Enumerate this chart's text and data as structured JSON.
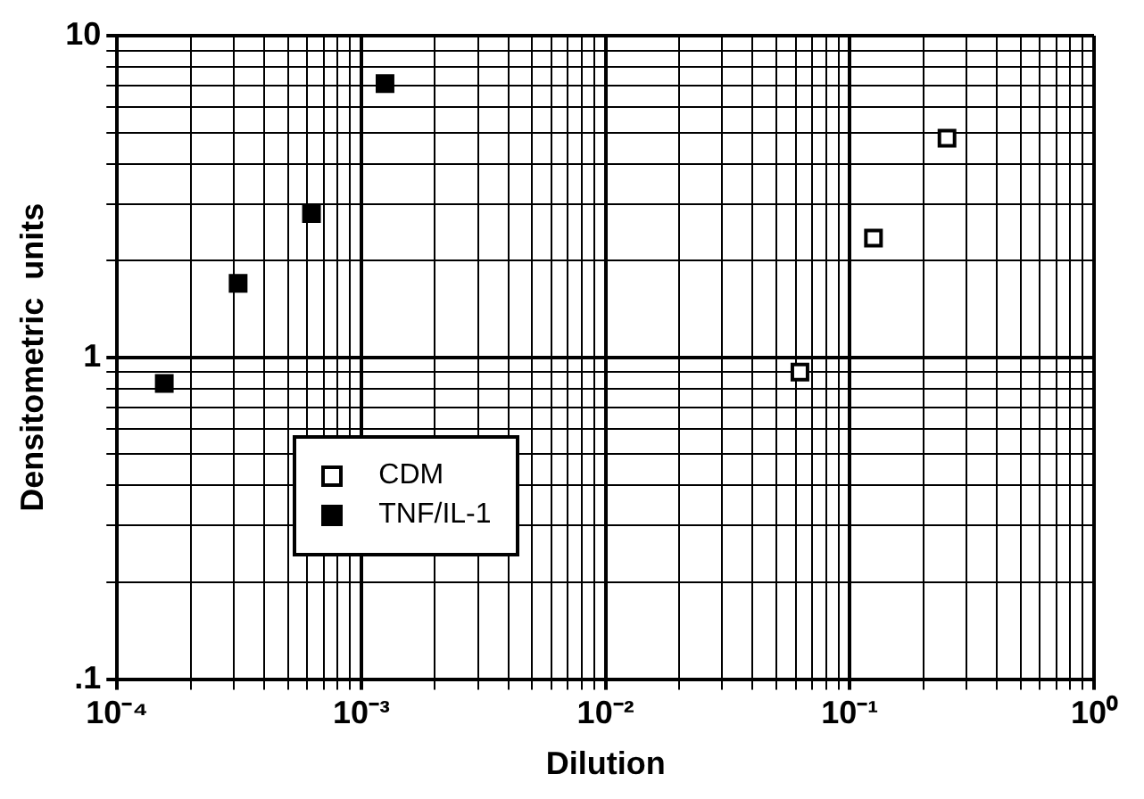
{
  "chart_data": {
    "type": "scatter",
    "xlabel": "Dilution",
    "ylabel": "Densitometric  units",
    "log": "xy",
    "grid": true,
    "marker": "square",
    "legend": "bottom left",
    "xlim": [
      0.0001,
      1
    ],
    "ylim": [
      0.1,
      10
    ],
    "xticks": [
      {
        "value": 0.0001,
        "label": "10⁻⁴"
      },
      {
        "value": 0.0002,
        "label": null
      },
      {
        "value": 0.0003,
        "label": null
      },
      {
        "value": 0.0004,
        "label": null
      },
      {
        "value": 0.0005,
        "label": null
      },
      {
        "value": 0.0006,
        "label": null
      },
      {
        "value": 0.0007,
        "label": null
      },
      {
        "value": 0.0008,
        "label": null
      },
      {
        "value": 0.0009,
        "label": null
      },
      {
        "value": 0.001,
        "label": "10⁻³"
      },
      {
        "value": 0.002,
        "label": null
      },
      {
        "value": 0.003,
        "label": null
      },
      {
        "value": 0.004,
        "label": null
      },
      {
        "value": 0.005,
        "label": null
      },
      {
        "value": 0.006,
        "label": null
      },
      {
        "value": 0.007,
        "label": null
      },
      {
        "value": 0.008,
        "label": null
      },
      {
        "value": 0.009,
        "label": null
      },
      {
        "value": 0.01,
        "label": "10⁻²"
      },
      {
        "value": 0.02,
        "label": null
      },
      {
        "value": 0.03,
        "label": null
      },
      {
        "value": 0.04,
        "label": null
      },
      {
        "value": 0.05,
        "label": null
      },
      {
        "value": 0.06,
        "label": null
      },
      {
        "value": 0.07,
        "label": null
      },
      {
        "value": 0.08,
        "label": null
      },
      {
        "value": 0.09,
        "label": null
      },
      {
        "value": 0.1,
        "label": "10⁻¹"
      },
      {
        "value": 0.2,
        "label": null
      },
      {
        "value": 0.3,
        "label": null
      },
      {
        "value": 0.4,
        "label": null
      },
      {
        "value": 0.5,
        "label": null
      },
      {
        "value": 0.6,
        "label": null
      },
      {
        "value": 0.7,
        "label": null
      },
      {
        "value": 0.8,
        "label": null
      },
      {
        "value": 0.9,
        "label": null
      },
      {
        "value": 1,
        "label": "10⁰"
      }
    ],
    "yticks": [
      {
        "value": 0.1,
        "label": ".1"
      },
      {
        "value": 0.2,
        "label": null
      },
      {
        "value": 0.3,
        "label": null
      },
      {
        "value": 0.4,
        "label": null
      },
      {
        "value": 0.5,
        "label": null
      },
      {
        "value": 0.6,
        "label": null
      },
      {
        "value": 0.7,
        "label": null
      },
      {
        "value": 0.8,
        "label": null
      },
      {
        "value": 0.9,
        "label": null
      },
      1,
      {
        "value": 2,
        "label": null
      },
      {
        "value": 3,
        "label": null
      },
      {
        "value": 4,
        "label": null
      },
      {
        "value": 5,
        "label": null
      },
      {
        "value": 6,
        "label": null
      },
      {
        "value": 7,
        "label": null
      },
      {
        "value": 8,
        "label": null
      },
      {
        "value": 9,
        "label": null
      },
      10
    ],
    "series": [
      {
        "name": "CDM",
        "color": "#ffffff",
        "x": [
          0.0625,
          0.125,
          0.25
        ],
        "values": [
          0.9,
          2.35,
          4.8
        ]
      },
      {
        "name": "TNF/IL-1",
        "color": "#000000",
        "x": [
          0.000156,
          0.000313,
          0.000625,
          0.00125
        ],
        "values": [
          0.83,
          1.7,
          2.8,
          7.1
        ]
      }
    ]
  }
}
